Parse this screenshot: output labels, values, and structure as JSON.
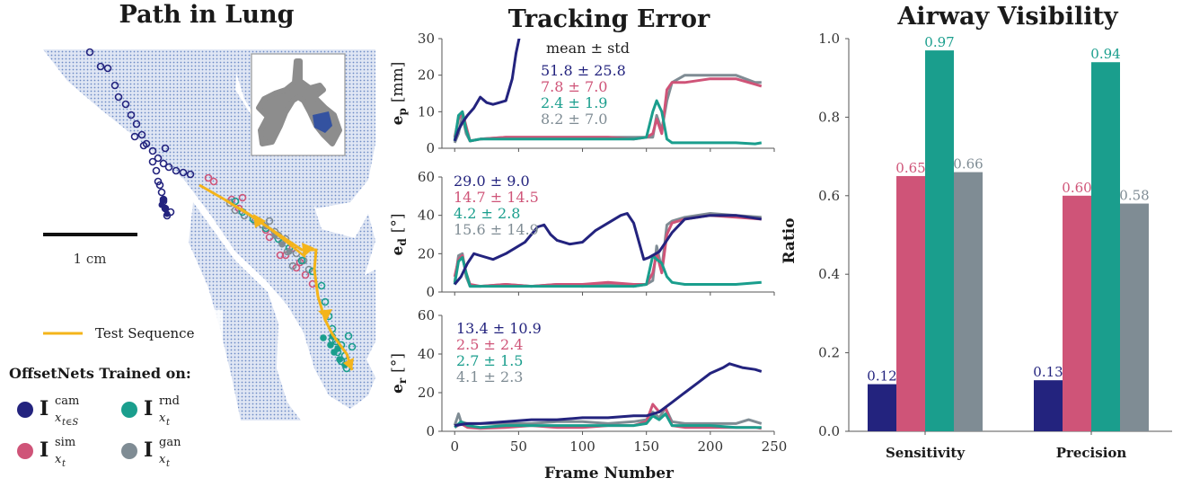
{
  "colors": {
    "cam": "#23237e",
    "sim": "#cf5478",
    "rnd": "#1a9e8d",
    "gan": "#7f8c94",
    "test_sequence": "#f4b41a",
    "lung": "#8fa6d4"
  },
  "left_panel": {
    "title": "Path in Lung",
    "scale_label": "1 cm",
    "legend_test_sequence": "Test Sequence",
    "legend_heading": "OffsetNets Trained on:",
    "legend_items": [
      {
        "symbol": "I",
        "sup": "cam",
        "sub": "x",
        "sub2": "t∈S",
        "color_key": "cam"
      },
      {
        "symbol": "I",
        "sup": "rnd",
        "sub": "x",
        "sub2": "t",
        "color_key": "rnd"
      },
      {
        "symbol": "I",
        "sup": "sim",
        "sub": "x",
        "sub2": "t",
        "color_key": "sim"
      },
      {
        "symbol": "I",
        "sup": "gan",
        "sub": "x",
        "sub2": "t",
        "color_key": "gan"
      }
    ]
  },
  "chart_data": [
    {
      "type": "line",
      "title": "Tracking Error",
      "xlabel": "Frame Number",
      "xlim": [
        -10,
        250
      ],
      "xticks": [
        "0",
        "50",
        "100",
        "150",
        "200",
        "250"
      ],
      "stats_header": "mean ± std",
      "subplots": [
        {
          "ylabel_main": "e",
          "ylabel_sub": "p",
          "ylabel_unit": "[mm]",
          "ylim": [
            0,
            30
          ],
          "yticks": [
            "0",
            "10",
            "20",
            "30"
          ],
          "stats": [
            "51.8 ± 25.8",
            "7.8 ± 7.0",
            "2.4 ± 1.9",
            "8.2 ± 7.0"
          ],
          "series": [
            {
              "color_key": "cam",
              "x": [
                0,
                3,
                6,
                10,
                15,
                20,
                25,
                30,
                35,
                40,
                45,
                48,
                51
              ],
              "y": [
                2,
                5,
                7,
                9,
                11,
                14,
                12.5,
                12,
                12.5,
                13,
                19,
                26,
                31
              ]
            },
            {
              "color_key": "sim",
              "x": [
                0,
                3,
                6,
                9,
                12,
                20,
                40,
                60,
                80,
                100,
                120,
                140,
                150,
                155,
                158,
                162,
                166,
                170,
                180,
                200,
                220,
                235,
                240
              ],
              "y": [
                3,
                8,
                10,
                6,
                2,
                2.5,
                3,
                3,
                3,
                3,
                3,
                2.5,
                3,
                4,
                8,
                4,
                16,
                18,
                18,
                19,
                19,
                17.5,
                17
              ]
            },
            {
              "color_key": "rnd",
              "x": [
                0,
                3,
                6,
                9,
                12,
                20,
                40,
                60,
                80,
                100,
                120,
                140,
                150,
                155,
                158,
                162,
                166,
                170,
                180,
                200,
                220,
                235,
                240
              ],
              "y": [
                2,
                9,
                10,
                5,
                2,
                2.5,
                2.5,
                2.5,
                2.5,
                2.5,
                2.5,
                2.5,
                3,
                10,
                13,
                10,
                2.5,
                1.5,
                1.5,
                1.5,
                1.5,
                1.2,
                1.5
              ]
            },
            {
              "color_key": "gan",
              "x": [
                0,
                3,
                6,
                9,
                12,
                20,
                40,
                60,
                80,
                100,
                120,
                140,
                150,
                155,
                158,
                162,
                166,
                170,
                180,
                200,
                220,
                235,
                240
              ],
              "y": [
                1.5,
                4,
                9,
                4,
                2,
                2.5,
                3,
                3,
                3,
                3,
                3,
                3,
                3,
                3,
                9,
                5,
                13,
                18,
                20,
                20,
                20,
                18,
                18
              ]
            }
          ]
        },
        {
          "ylabel_main": "e",
          "ylabel_sub": "d",
          "ylabel_unit": "[°]",
          "ylim": [
            0,
            60
          ],
          "yticks": [
            "0",
            "20",
            "40",
            "60"
          ],
          "stats": [
            "29.0 ± 9.0",
            "14.7 ± 14.5",
            "4.2 ± 2.8",
            "15.6 ± 14.9"
          ],
          "series": [
            {
              "color_key": "cam",
              "x": [
                0,
                5,
                10,
                15,
                20,
                30,
                40,
                55,
                65,
                70,
                75,
                80,
                90,
                100,
                110,
                120,
                130,
                135,
                140,
                148,
                152,
                160,
                170,
                180,
                200,
                220,
                240
              ],
              "y": [
                4,
                8,
                15,
                20,
                19,
                17,
                20,
                26,
                34,
                35,
                30,
                27,
                25,
                26,
                32,
                36,
                40,
                41,
                36,
                17,
                18,
                21,
                31,
                38,
                40,
                40,
                38
              ]
            },
            {
              "color_key": "sim",
              "x": [
                0,
                3,
                6,
                9,
                12,
                20,
                40,
                60,
                80,
                100,
                120,
                140,
                150,
                155,
                158,
                162,
                166,
                170,
                180,
                200,
                220,
                240
              ],
              "y": [
                8,
                17,
                19,
                10,
                4,
                3,
                4,
                3,
                4,
                4,
                5,
                4,
                4,
                10,
                20,
                10,
                30,
                36,
                38,
                40,
                39,
                38
              ]
            },
            {
              "color_key": "rnd",
              "x": [
                0,
                3,
                6,
                9,
                12,
                20,
                40,
                60,
                80,
                100,
                120,
                140,
                150,
                155,
                158,
                162,
                166,
                170,
                180,
                200,
                220,
                240
              ],
              "y": [
                4,
                16,
                18,
                10,
                3,
                3,
                3,
                3,
                3,
                3,
                3,
                3,
                4,
                19,
                17,
                15,
                8,
                5,
                4,
                4,
                4,
                5
              ]
            },
            {
              "color_key": "gan",
              "x": [
                0,
                3,
                6,
                9,
                12,
                20,
                40,
                60,
                80,
                100,
                120,
                140,
                150,
                155,
                158,
                162,
                166,
                170,
                180,
                200,
                220,
                240
              ],
              "y": [
                5,
                19,
                20,
                8,
                3,
                3,
                4,
                3,
                4,
                3,
                4,
                3,
                4,
                6,
                24,
                12,
                35,
                37,
                39,
                41,
                40,
                39
              ]
            }
          ]
        },
        {
          "ylabel_main": "e",
          "ylabel_sub": "r",
          "ylabel_unit": "[°]",
          "ylim": [
            0,
            60
          ],
          "yticks": [
            "0",
            "20",
            "40",
            "60"
          ],
          "stats": [
            "13.4 ± 10.9",
            "2.5 ± 2.4",
            "2.7 ± 1.5",
            "4.1 ± 2.3"
          ],
          "series": [
            {
              "color_key": "cam",
              "x": [
                0,
                10,
                20,
                40,
                60,
                80,
                100,
                120,
                140,
                150,
                160,
                170,
                180,
                190,
                200,
                210,
                215,
                225,
                235,
                240
              ],
              "y": [
                3,
                4,
                4,
                5,
                6,
                6,
                7,
                7,
                8,
                8,
                10,
                15,
                20,
                25,
                30,
                33,
                35,
                33,
                32,
                31
              ]
            },
            {
              "color_key": "sim",
              "x": [
                0,
                5,
                10,
                20,
                40,
                60,
                80,
                100,
                120,
                140,
                150,
                155,
                160,
                165,
                170,
                180,
                200,
                220,
                235,
                240
              ],
              "y": [
                2,
                4,
                2,
                1.5,
                2,
                3,
                2,
                2,
                3,
                3,
                5,
                14,
                10,
                12,
                3,
                2,
                2,
                2,
                2,
                1.5
              ]
            },
            {
              "color_key": "rnd",
              "x": [
                0,
                5,
                10,
                20,
                40,
                60,
                80,
                100,
                120,
                140,
                150,
                155,
                160,
                165,
                170,
                180,
                200,
                220,
                235,
                240
              ],
              "y": [
                2,
                5,
                3,
                2,
                3,
                3,
                3,
                3,
                3,
                3,
                4,
                8,
                6,
                9,
                3,
                3,
                3,
                2,
                2,
                2
              ]
            },
            {
              "color_key": "gan",
              "x": [
                0,
                3,
                5,
                10,
                20,
                40,
                60,
                80,
                100,
                120,
                140,
                150,
                155,
                160,
                165,
                170,
                180,
                200,
                220,
                230,
                240
              ],
              "y": [
                3,
                9,
                5,
                4,
                4,
                4,
                4,
                5,
                5,
                4,
                5,
                6,
                10,
                7,
                12,
                5,
                4,
                4,
                4,
                6,
                4
              ]
            }
          ]
        }
      ]
    },
    {
      "type": "bar",
      "title": "Airway Visibility",
      "ylabel": "Ratio",
      "ylim": [
        0,
        1.0
      ],
      "yticks": [
        "0.0",
        "0.2",
        "0.4",
        "0.6",
        "0.8",
        "1.0"
      ],
      "categories": [
        "Sensitivity",
        "Precision"
      ],
      "series": [
        {
          "color_key": "cam",
          "values": [
            0.12,
            0.13
          ],
          "labels": [
            "0.12",
            "0.13"
          ]
        },
        {
          "color_key": "sim",
          "values": [
            0.65,
            0.6
          ],
          "labels": [
            "0.65",
            "0.60"
          ]
        },
        {
          "color_key": "rnd",
          "values": [
            0.97,
            0.94
          ],
          "labels": [
            "0.97",
            "0.94"
          ]
        },
        {
          "color_key": "gan",
          "values": [
            0.66,
            0.58
          ],
          "labels": [
            "0.66",
            "0.58"
          ]
        }
      ]
    }
  ]
}
